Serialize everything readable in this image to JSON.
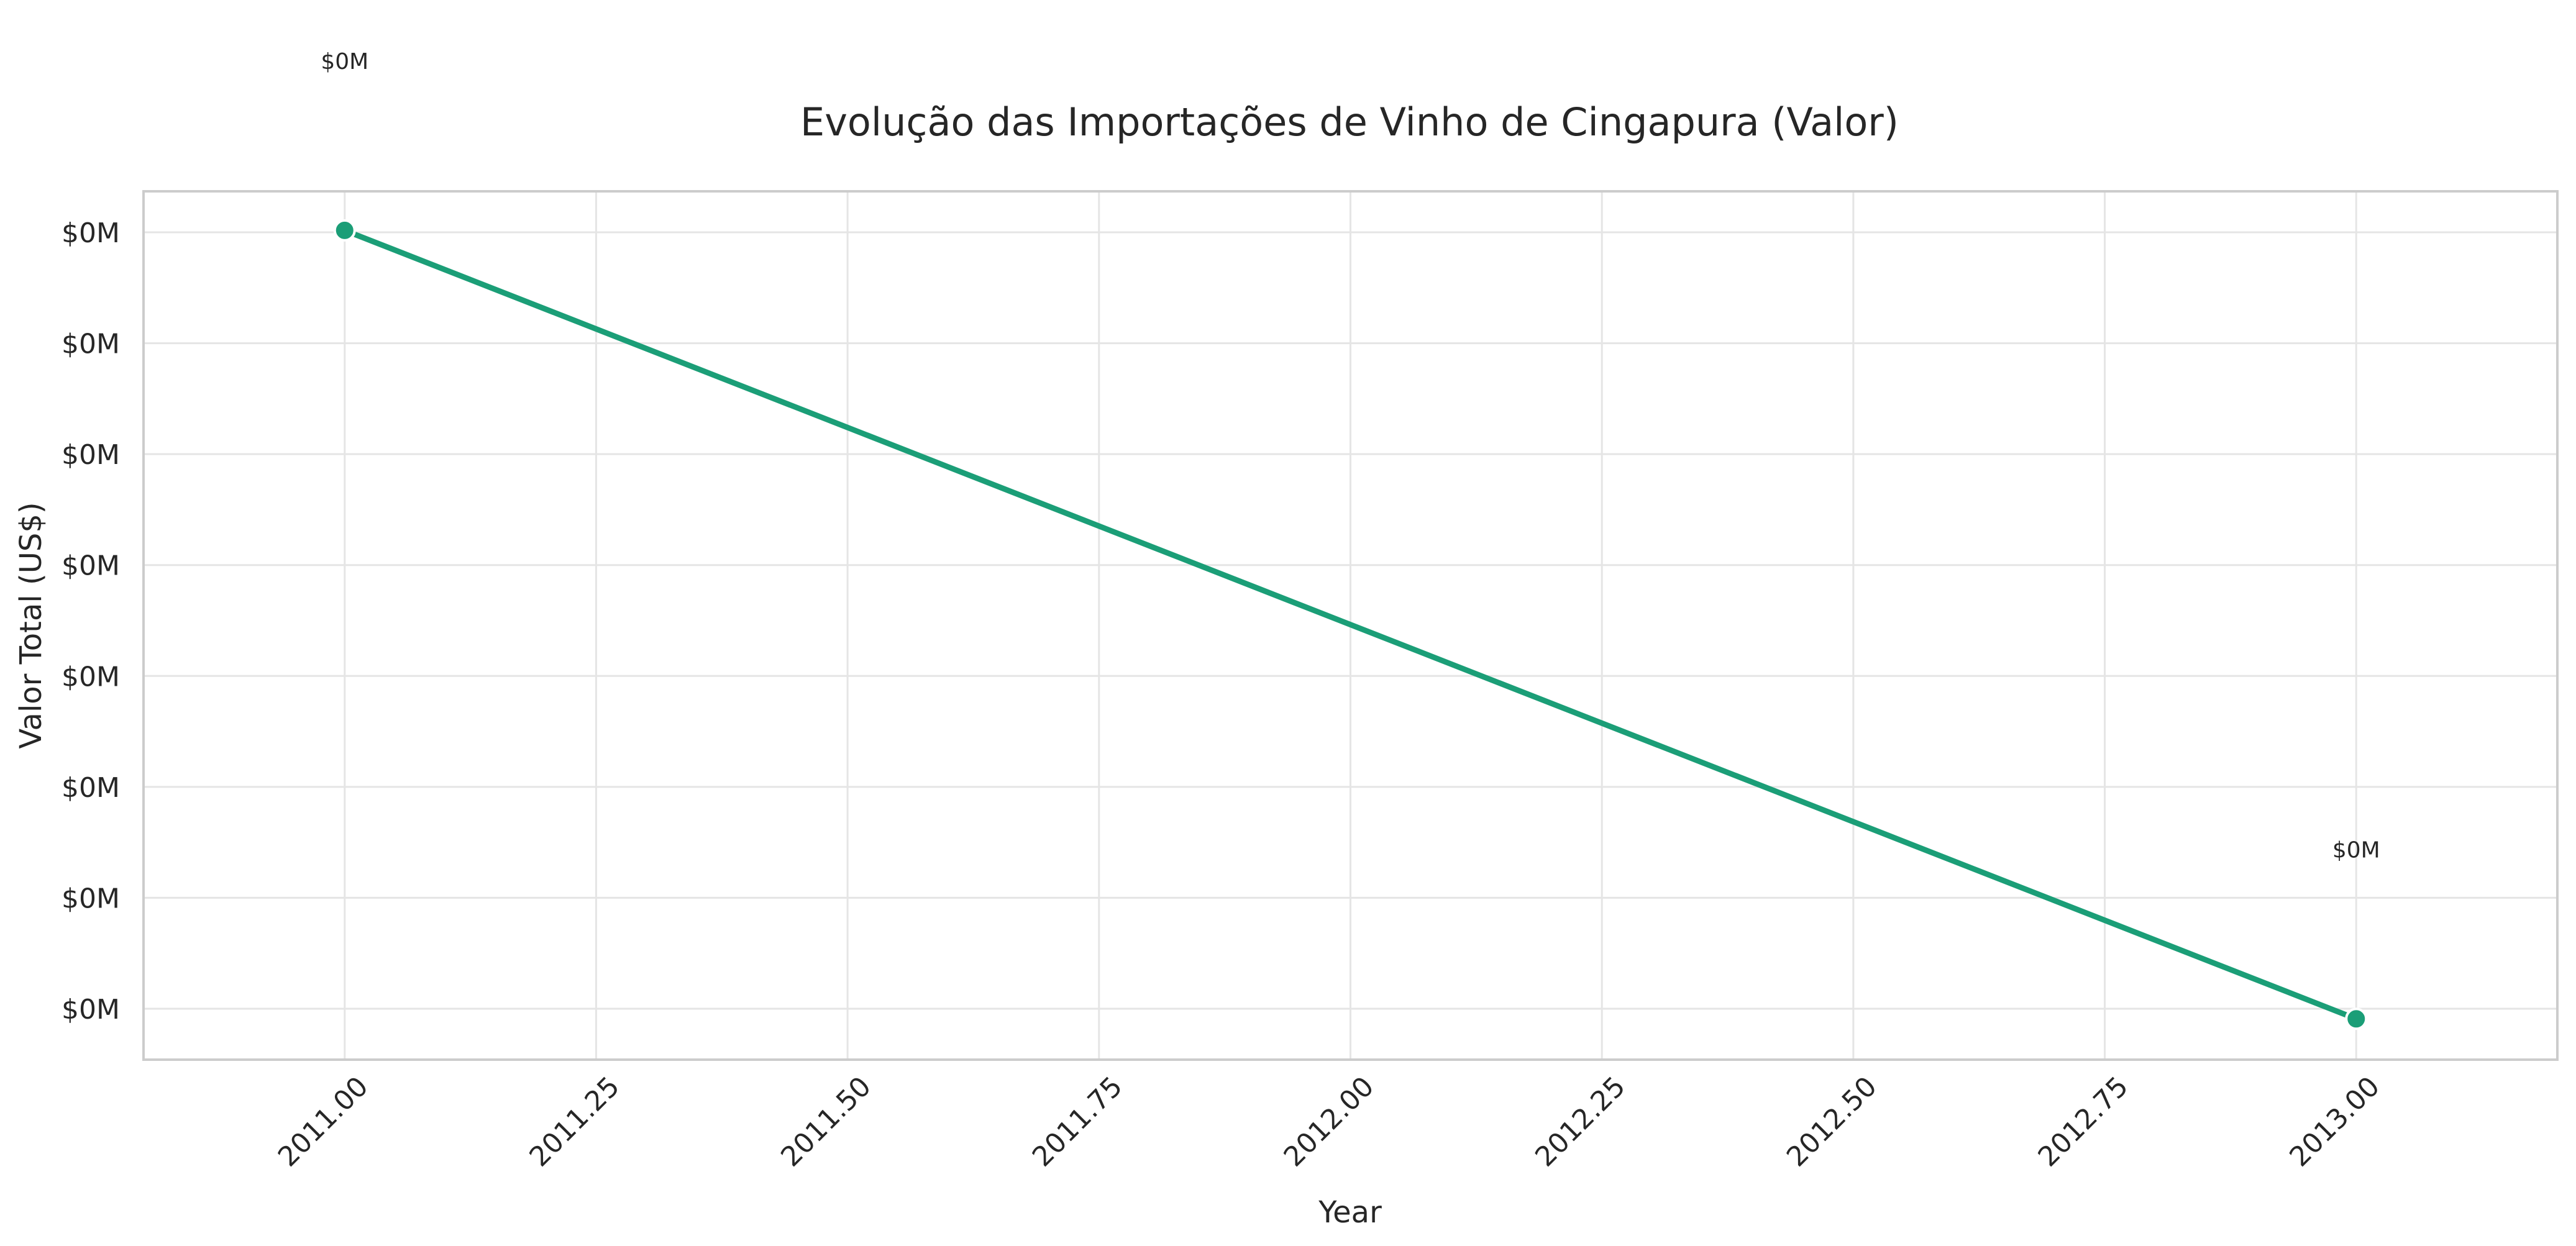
{
  "chart_data": {
    "type": "line",
    "title": "Evolução das Importações de Vinho de Cingapura (Valor)",
    "xlabel": "Year",
    "ylabel": "Valor Total (US$)",
    "x": [
      2011,
      2013
    ],
    "xlim": [
      2010.8,
      2013.2
    ],
    "ylim": [
      0,
      1
    ],
    "x_ticks": [
      2011.0,
      2011.25,
      2011.5,
      2011.75,
      2012.0,
      2012.25,
      2012.5,
      2012.75,
      2013.0
    ],
    "x_tick_labels": [
      "2011.00",
      "2011.25",
      "2011.50",
      "2011.75",
      "2012.00",
      "2012.25",
      "2012.50",
      "2012.75",
      "2013.00"
    ],
    "y_tick_labels": [
      "$0M",
      "$0M",
      "$0M",
      "$0M",
      "$0M",
      "$0M",
      "$0M",
      "$0M"
    ],
    "series": [
      {
        "values": [
          0.955,
          0.047
        ],
        "point_labels": [
          "$0M",
          "$0M"
        ],
        "color": "#1b9e77"
      }
    ],
    "grid": true,
    "legend": "none"
  }
}
